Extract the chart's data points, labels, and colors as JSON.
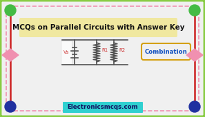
{
  "bg_color": "#f0f0f0",
  "border_outer_color": "#88cc44",
  "border_inner_color": "#f090b0",
  "title_text": "MCQs on Parallel Circuits with Answer Key",
  "title_bg": "#f0e8a0",
  "title_text_color": "#111111",
  "website_text": "Electronicsmcqs.com",
  "website_bg": "#30d0d0",
  "website_text_color": "#101060",
  "combination_text": "Combination",
  "combination_border": "#d4a010",
  "combination_text_color": "#1050c0",
  "corner_top_color": "#44bb44",
  "corner_bottom_color": "#2030a0",
  "diamond_color": "#f090b0",
  "vline_color": "#cc2020",
  "circuit_color": "#505050",
  "vs_label_color": "#cc3030",
  "r_label_color": "#cc3030",
  "figw": 2.97,
  "figh": 1.7,
  "dpi": 100
}
